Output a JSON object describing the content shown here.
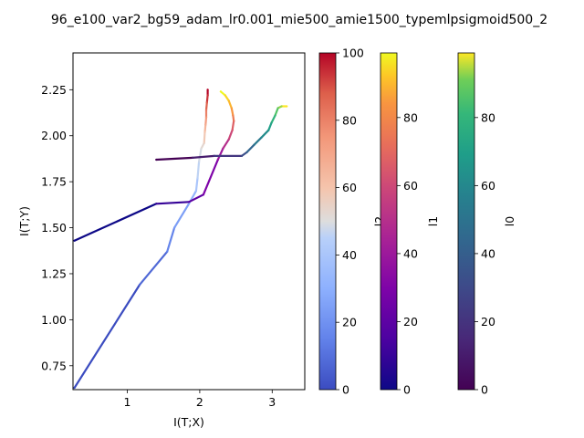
{
  "chart_data": {
    "type": "line",
    "title": "96_e100_var2_bg59_adam_lr0.001_mie500_amie1500_typemlpsigmoid500_2",
    "xlabel": "I(T;X)",
    "ylabel": "I(T;Y)",
    "xlim": [
      0.25,
      3.45
    ],
    "ylim": [
      0.62,
      2.45
    ],
    "xticks": [
      1,
      2,
      3
    ],
    "yticks": [
      0.75,
      1.0,
      1.25,
      1.5,
      1.75,
      2.0,
      2.25
    ],
    "xtick_labels": [
      "1",
      "2",
      "3"
    ],
    "ytick_labels": [
      "0.75",
      "1.00",
      "1.25",
      "1.50",
      "1.75",
      "2.00",
      "2.25"
    ],
    "grid": false,
    "series": [
      {
        "name": "l2",
        "colormap": "coolwarm",
        "x": [
          0.27,
          1.17,
          1.55,
          1.65,
          1.85,
          1.95,
          1.97,
          1.99,
          2.02,
          2.06,
          2.07,
          2.08,
          2.09,
          2.09,
          2.1,
          2.11,
          2.11
        ],
        "y": [
          0.63,
          1.19,
          1.37,
          1.5,
          1.63,
          1.7,
          1.77,
          1.86,
          1.93,
          1.96,
          2.02,
          2.06,
          2.1,
          2.14,
          2.18,
          2.22,
          2.25
        ]
      },
      {
        "name": "l1",
        "colormap": "plasma",
        "x": [
          0.27,
          1.4,
          1.85,
          2.05,
          2.25,
          2.32,
          2.4,
          2.45,
          2.47,
          2.46,
          2.44,
          2.4,
          2.35,
          2.29
        ],
        "y": [
          1.43,
          1.63,
          1.64,
          1.68,
          1.87,
          1.93,
          1.98,
          2.03,
          2.08,
          2.11,
          2.15,
          2.19,
          2.22,
          2.24
        ]
      },
      {
        "name": "l0",
        "colormap": "viridis",
        "x": [
          1.4,
          1.9,
          2.2,
          2.58,
          2.65,
          2.75,
          2.85,
          2.95,
          2.99,
          3.04,
          3.08,
          3.13,
          3.2
        ],
        "y": [
          1.87,
          1.88,
          1.89,
          1.89,
          1.91,
          1.95,
          1.99,
          2.03,
          2.07,
          2.11,
          2.15,
          2.16,
          2.16
        ]
      }
    ],
    "colorbars": [
      {
        "label": "l2",
        "colormap": "coolwarm",
        "range": [
          0,
          100
        ],
        "ticks": [
          "0",
          "20",
          "40",
          "60",
          "80",
          "100"
        ]
      },
      {
        "label": "l1",
        "colormap": "plasma",
        "range": [
          0,
          99
        ],
        "ticks": [
          "0",
          "20",
          "40",
          "60",
          "80"
        ]
      },
      {
        "label": "l0",
        "colormap": "viridis",
        "range": [
          0,
          99
        ],
        "ticks": [
          "0",
          "20",
          "40",
          "60",
          "80"
        ]
      }
    ]
  }
}
